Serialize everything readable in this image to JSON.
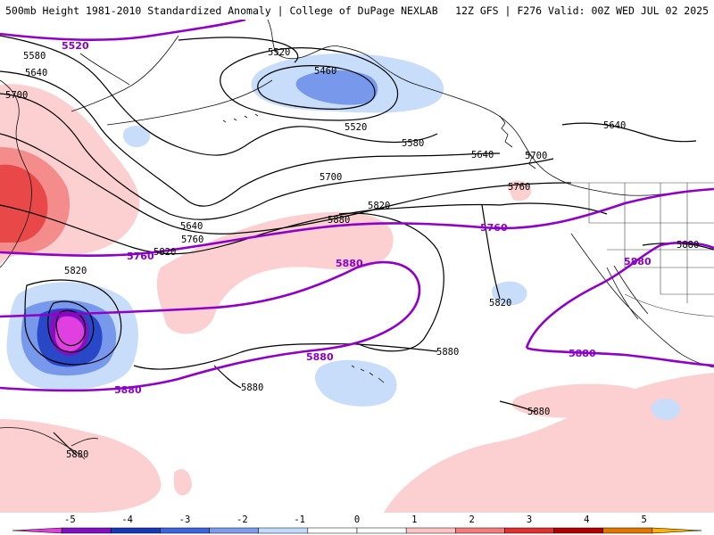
{
  "header": {
    "left": "500mb Height 1981-2010 Standardized Anomaly | College of DuPage NEXLAB",
    "right": "12Z GFS | F276 Valid: 00Z WED JUL 02 2025"
  },
  "contours": {
    "labels": [
      {
        "id": "c1",
        "text": "5580"
      },
      {
        "id": "c2",
        "text": "5640"
      },
      {
        "id": "c3",
        "text": "5700"
      },
      {
        "id": "c4",
        "text": "5520"
      },
      {
        "id": "c5",
        "text": "5460"
      },
      {
        "id": "c6",
        "text": "5520"
      },
      {
        "id": "c7",
        "text": "5580"
      },
      {
        "id": "c8",
        "text": "5640"
      },
      {
        "id": "c9",
        "text": "5700"
      },
      {
        "id": "c10",
        "text": "5640"
      },
      {
        "id": "c11",
        "text": "5760"
      },
      {
        "id": "c12",
        "text": "5820"
      },
      {
        "id": "c13",
        "text": "5880"
      },
      {
        "id": "c14",
        "text": "5820"
      },
      {
        "id": "c15",
        "text": "5700"
      },
      {
        "id": "c16",
        "text": "5640"
      },
      {
        "id": "c17",
        "text": "5760"
      },
      {
        "id": "c18",
        "text": "5820"
      },
      {
        "id": "c19",
        "text": "5820"
      },
      {
        "id": "c20",
        "text": "5880"
      },
      {
        "id": "c21",
        "text": "5880"
      },
      {
        "id": "c22",
        "text": "5880"
      },
      {
        "id": "c23",
        "text": "5880"
      },
      {
        "id": "c24",
        "text": "5880"
      }
    ],
    "reference_labels": [
      {
        "id": "r1",
        "text": "5520"
      },
      {
        "id": "r2",
        "text": "5760"
      },
      {
        "id": "r3",
        "text": "5880"
      },
      {
        "id": "r4",
        "text": "5760"
      },
      {
        "id": "r5",
        "text": "5880"
      },
      {
        "id": "r6",
        "text": "5880"
      },
      {
        "id": "r7",
        "text": "5880"
      },
      {
        "id": "r8",
        "text": "5880"
      }
    ]
  },
  "colorbar": {
    "ticks": [
      "-5",
      "-4",
      "-3",
      "-2",
      "-1",
      "0",
      "1",
      "2",
      "3",
      "4",
      "5"
    ],
    "colors": [
      "#e040e0",
      "#8010c0",
      "#1838b8",
      "#3c64dc",
      "#7c9cec",
      "#c4dafa",
      "#ffffff",
      "#ffffff",
      "#fcc4c4",
      "#f47c7c",
      "#e03030",
      "#b00000",
      "#e07800",
      "#ffb000"
    ]
  },
  "palette": {
    "reference_contour": "#9000c8",
    "contour": "#000000",
    "pos_anom_light": "#fcd0d0",
    "pos_anom_mid": "#f48c8c",
    "pos_anom_strong": "#e84848",
    "neg_anom_light": "#c8ddfa",
    "neg_anom_mid": "#7898ec",
    "neg_anom_strong": "#2848c8",
    "neg_anom_extreme": "#e040e0"
  }
}
